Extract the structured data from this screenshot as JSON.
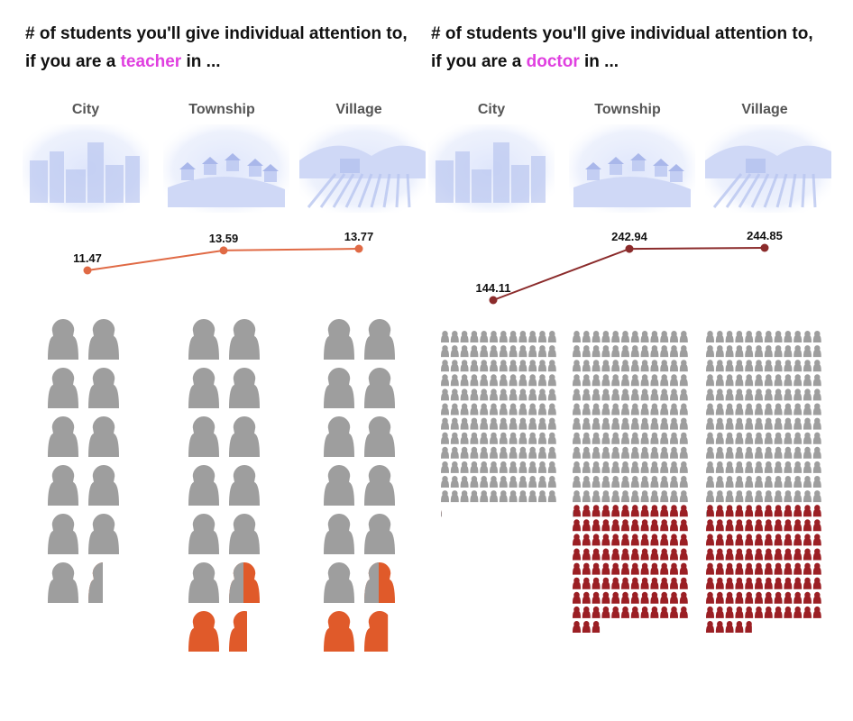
{
  "panels": [
    {
      "title_line1": "# of students you'll give individual attention to,",
      "title_line2_prefix": "if you are a ",
      "role": "teacher",
      "title_line2_suffix": " in ..."
    },
    {
      "title_line1": "# of students you'll give individual attention to,",
      "title_line2_prefix": "if you are a ",
      "role": "doctor",
      "title_line2_suffix": " in ..."
    }
  ],
  "colors": {
    "highlight": "#e040e0",
    "base_icon": "#9e9e9e",
    "teacher_line": "#e06a45",
    "teacher_extra": "#e05a2a",
    "doctor_line": "#8b2b2b",
    "doctor_extra": "#9b1f24",
    "label_text": "#555555"
  },
  "chart_data": [
    {
      "type": "line",
      "role": "teacher",
      "categories": [
        "City",
        "Township",
        "Village"
      ],
      "values": [
        11.47,
        13.59,
        13.77
      ],
      "value_labels": [
        "11.47",
        "13.59",
        "13.77"
      ],
      "unit_per_icon": 1
    },
    {
      "type": "line",
      "role": "doctor",
      "categories": [
        "City",
        "Township",
        "Village"
      ],
      "values": [
        144.11,
        242.94,
        244.85
      ],
      "value_labels": [
        "144.11",
        "242.94",
        "244.85"
      ],
      "unit_per_icon": 1
    }
  ]
}
